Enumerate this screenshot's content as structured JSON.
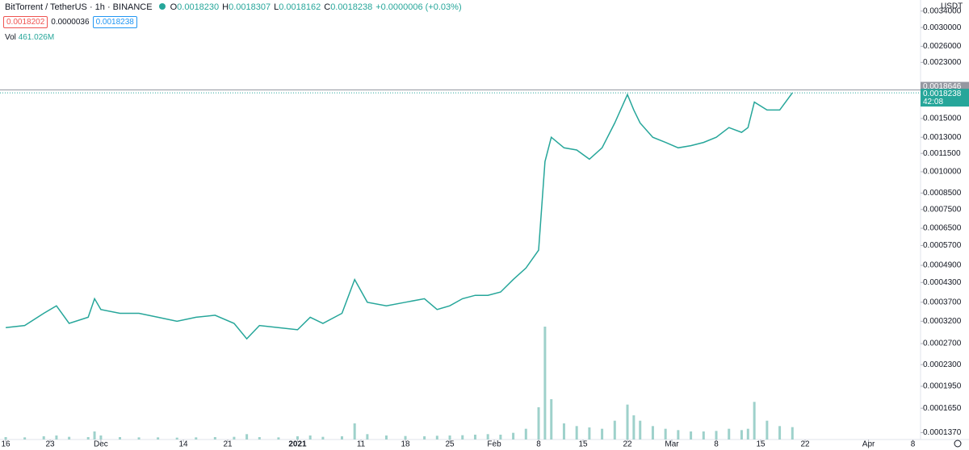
{
  "chart_data": {
    "type": "line",
    "title": "BitTorrent / TetherUS · 1h · BINANCE",
    "ohlc": [
      {
        "label": "O",
        "value": "0.0018230"
      },
      {
        "label": "H",
        "value": "0.0018307"
      },
      {
        "label": "L",
        "value": "0.0018162"
      },
      {
        "label": "C",
        "value": "0.0018238"
      }
    ],
    "change": "+0.0000006 (+0.03%)",
    "bid": "0.0018202",
    "spread": "0.0000036",
    "ask": "0.0018238",
    "volume_label": "Vol",
    "volume_value": "461.026M",
    "currency": "USDT",
    "color": "#26a69a",
    "volume_color": "#9ed1cb",
    "log_scale": true,
    "grid": false,
    "x": [
      0,
      3,
      6,
      8,
      10,
      13,
      14,
      15,
      18,
      21,
      24,
      27,
      30,
      33,
      36,
      38,
      40,
      43,
      46,
      48,
      50,
      53,
      55,
      57,
      60,
      63,
      66,
      68,
      70,
      72,
      74,
      76,
      78,
      80,
      82,
      84,
      85,
      86,
      88,
      90,
      92,
      94,
      96,
      98,
      99,
      100,
      102,
      104,
      106,
      108,
      110,
      112,
      114,
      116,
      117,
      118,
      120,
      122,
      124
    ],
    "values": [
      0.000305,
      0.00031,
      0.00034,
      0.00036,
      0.000315,
      0.00033,
      0.00038,
      0.00035,
      0.00034,
      0.00034,
      0.00033,
      0.00032,
      0.00033,
      0.000335,
      0.000315,
      0.00028,
      0.00031,
      0.000305,
      0.0003,
      0.00033,
      0.000315,
      0.00034,
      0.00044,
      0.00037,
      0.00036,
      0.00037,
      0.00038,
      0.00035,
      0.00036,
      0.00038,
      0.00039,
      0.00039,
      0.0004,
      0.00044,
      0.00048,
      0.00055,
      0.00108,
      0.0013,
      0.0012,
      0.00118,
      0.0011,
      0.0012,
      0.00145,
      0.0018,
      0.0016,
      0.00145,
      0.0013,
      0.00125,
      0.0012,
      0.00122,
      0.00125,
      0.0013,
      0.0014,
      0.00135,
      0.0014,
      0.0017,
      0.0016,
      0.0016,
      0.0018238
    ],
    "volume": [
      90,
      80,
      120,
      150,
      100,
      90,
      300,
      150,
      90,
      80,
      80,
      70,
      80,
      90,
      100,
      200,
      90,
      80,
      120,
      150,
      100,
      120,
      600,
      200,
      150,
      130,
      120,
      140,
      150,
      160,
      180,
      200,
      180,
      250,
      400,
      1200,
      4200,
      1500,
      600,
      500,
      450,
      400,
      700,
      1300,
      900,
      700,
      500,
      400,
      350,
      300,
      300,
      320,
      400,
      350,
      400,
      1400,
      700,
      500,
      461.026
    ],
    "vlim": [
      0,
      4500
    ],
    "xlim": [
      -0.9,
      144.2
    ],
    "ylim": [
      0.00013,
      0.0037
    ],
    "xticks": [
      {
        "value": 0,
        "label": "16"
      },
      {
        "value": 7,
        "label": "23"
      },
      {
        "value": 15,
        "label": "Dec"
      },
      {
        "value": 28,
        "label": "14"
      },
      {
        "value": 35,
        "label": "21"
      },
      {
        "value": 46,
        "label": "2021"
      },
      {
        "value": 56,
        "label": "11"
      },
      {
        "value": 63,
        "label": "18"
      },
      {
        "value": 70,
        "label": "25"
      },
      {
        "value": 77,
        "label": "Feb"
      },
      {
        "value": 84,
        "label": "8"
      },
      {
        "value": 91,
        "label": "15"
      },
      {
        "value": 98,
        "label": "22"
      },
      {
        "value": 105,
        "label": "Mar"
      },
      {
        "value": 112,
        "label": "8"
      },
      {
        "value": 119,
        "label": "15"
      },
      {
        "value": 126,
        "label": "22"
      },
      {
        "value": 136,
        "label": "Apr"
      },
      {
        "value": 143,
        "label": "8"
      }
    ],
    "yticks": [
      {
        "value": 0.0034,
        "label": "0.0034000"
      },
      {
        "value": 0.003,
        "label": "0.0030000"
      },
      {
        "value": 0.0026,
        "label": "0.0026000"
      },
      {
        "value": 0.0023,
        "label": "0.0023000"
      },
      {
        "value": 0.0015,
        "label": "0.0015000"
      },
      {
        "value": 0.0013,
        "label": "0.0013000"
      },
      {
        "value": 0.00115,
        "label": "0.0011500"
      },
      {
        "value": 0.001,
        "label": "0.0010000"
      },
      {
        "value": 0.00085,
        "label": "0.0008500"
      },
      {
        "value": 0.00075,
        "label": "0.0007500"
      },
      {
        "value": 0.00065,
        "label": "0.0006500"
      },
      {
        "value": 0.00057,
        "label": "0.0005700"
      },
      {
        "value": 0.00049,
        "label": "0.0004900"
      },
      {
        "value": 0.00043,
        "label": "0.0004300"
      },
      {
        "value": 0.00037,
        "label": "0.0003700"
      },
      {
        "value": 0.00032,
        "label": "0.0003200"
      },
      {
        "value": 0.00027,
        "label": "0.0002700"
      },
      {
        "value": 0.00023,
        "label": "0.0002300"
      },
      {
        "value": 0.000195,
        "label": "0.0001950"
      },
      {
        "value": 0.000165,
        "label": "0.0001650"
      },
      {
        "value": 0.000137,
        "label": "0.0001370"
      }
    ],
    "price_lines": [
      {
        "value": 0.0018646,
        "label": "0.0018646",
        "color": "#9598a1"
      },
      {
        "value": 0.0018238,
        "label": "0.0018238",
        "countdown": "42:08",
        "color": "#26a69a"
      }
    ]
  }
}
